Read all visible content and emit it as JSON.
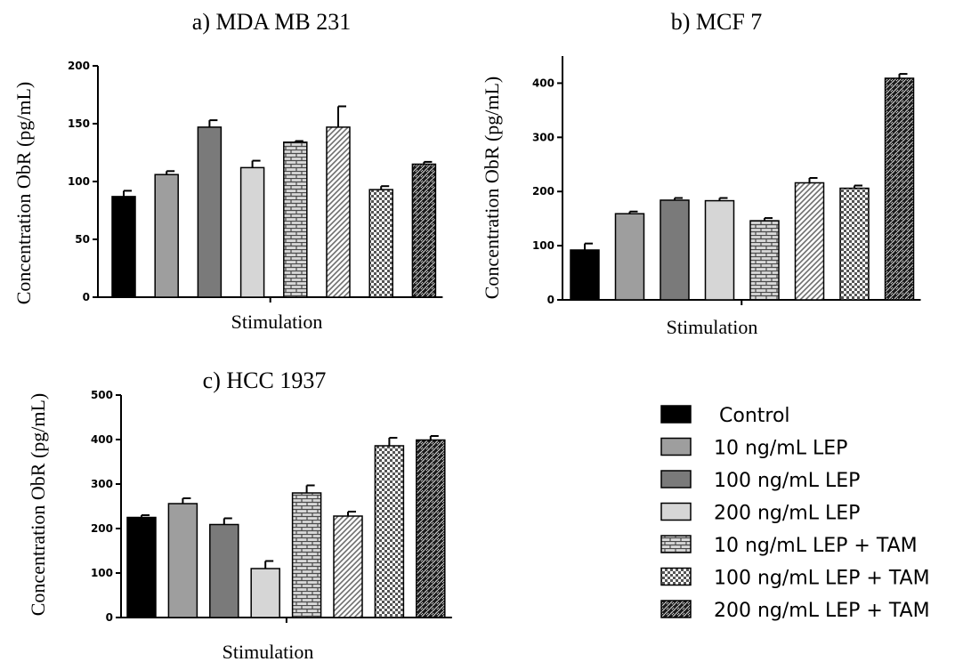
{
  "chart_data": [
    {
      "type": "bar",
      "title": "a) MDA MB 231",
      "xlabel": "Stimulation",
      "ylabel": "Concentration ObR (pg/mL)",
      "ylim": [
        0,
        200
      ],
      "yticks": [
        0,
        50,
        100,
        150,
        200
      ],
      "categories": [
        "Control",
        "10 ng/mL LEP",
        "100 ng/mL LEP",
        "200 ng/mL LEP",
        "10 ng/mL LEP + TAM",
        "100 ng/mL LEP + TAM",
        "200 ng/mL LEP + TAM",
        "200 ng/mL LEP + TAM"
      ],
      "values": [
        87,
        106,
        147,
        112,
        134,
        147,
        93,
        115
      ],
      "errors": [
        5,
        3,
        6,
        6,
        1,
        18,
        3,
        2
      ],
      "patterns": [
        "solid-black",
        "solid-mid",
        "solid-dark",
        "solid-light",
        "brick",
        "diagonal",
        "checker",
        "weave"
      ]
    },
    {
      "type": "bar",
      "title": "b) MCF 7",
      "xlabel": "Stimulation",
      "ylabel": "Concentration ObR (pg/mL)",
      "ylim": [
        0,
        450
      ],
      "yticks": [
        0,
        100,
        200,
        300,
        400
      ],
      "categories": [
        "Control",
        "10 ng/mL LEP",
        "100 ng/mL LEP",
        "200 ng/mL LEP",
        "10 ng/mL LEP + TAM",
        "100 ng/mL LEP + TAM",
        "200 ng/mL LEP + TAM",
        "200 ng/mL LEP + TAM"
      ],
      "values": [
        92,
        159,
        184,
        183,
        146,
        216,
        206,
        409
      ],
      "errors": [
        12,
        4,
        4,
        5,
        5,
        9,
        5,
        8
      ],
      "patterns": [
        "solid-black",
        "solid-mid",
        "solid-dark",
        "solid-light",
        "brick",
        "diagonal",
        "checker",
        "weave"
      ]
    },
    {
      "type": "bar",
      "title": "c) HCC 1937",
      "xlabel": "Stimulation",
      "ylabel": "Concentration ObR (pg/mL)",
      "ylim": [
        0,
        500
      ],
      "yticks": [
        0,
        100,
        200,
        300,
        400,
        500
      ],
      "categories": [
        "Control",
        "10 ng/mL LEP",
        "100 ng/mL LEP",
        "200 ng/mL LEP",
        "10 ng/mL LEP + TAM",
        "100 ng/mL LEP + TAM",
        "200 ng/mL LEP + TAM",
        "200 ng/mL LEP + TAM"
      ],
      "values": [
        225,
        256,
        209,
        110,
        280,
        228,
        386,
        399
      ],
      "errors": [
        5,
        12,
        14,
        17,
        17,
        10,
        18,
        9
      ],
      "patterns": [
        "solid-black",
        "solid-mid",
        "solid-dark",
        "solid-light",
        "brick",
        "diagonal",
        "checker",
        "weave"
      ]
    }
  ],
  "legend": {
    "placement": "bottom-right",
    "items": [
      {
        "label": "Control",
        "pattern": "solid-black"
      },
      {
        "label": "10 ng/mL LEP",
        "pattern": "solid-mid"
      },
      {
        "label": "100 ng/mL LEP",
        "pattern": "solid-dark"
      },
      {
        "label": "200 ng/mL LEP",
        "pattern": "solid-light"
      },
      {
        "label": "10 ng/mL LEP + TAM",
        "pattern": "brick"
      },
      {
        "label": "100 ng/mL LEP + TAM",
        "pattern": "checker"
      },
      {
        "label": "200 ng/mL LEP + TAM",
        "pattern": "weave"
      }
    ]
  },
  "colors": {
    "solid-black": "#000000",
    "solid-mid": "#9e9e9e",
    "solid-dark": "#7a7a7a",
    "solid-light": "#d6d6d6",
    "axis": "#000000"
  }
}
